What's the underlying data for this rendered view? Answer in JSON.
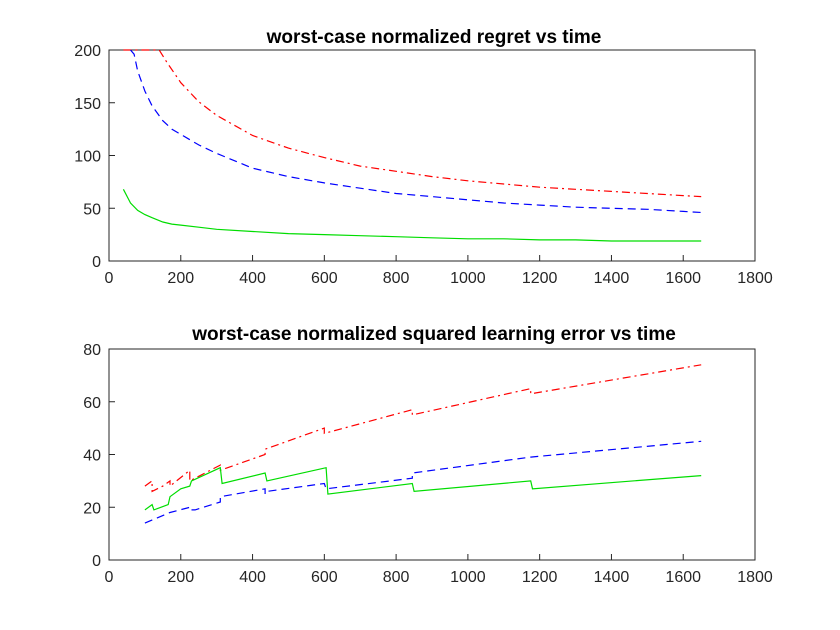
{
  "chart_data": [
    {
      "type": "line",
      "title": "worst-case normalized regret vs time",
      "xlabel": "",
      "ylabel": "",
      "xlim": [
        0,
        1800
      ],
      "ylim": [
        0,
        200
      ],
      "xticks": [
        "0",
        "200",
        "400",
        "600",
        "800",
        "1000",
        "1200",
        "1400",
        "1600",
        "1800"
      ],
      "yticks": [
        "0",
        "50",
        "100",
        "150",
        "200"
      ],
      "grid": false,
      "series": [
        {
          "color": "#ff0000",
          "linestyle": "dashdot",
          "x": [
            40,
            100,
            140,
            160,
            200,
            250,
            300,
            400,
            500,
            600,
            700,
            800,
            900,
            1000,
            1100,
            1200,
            1300,
            1400,
            1500,
            1600,
            1650
          ],
          "y": [
            200,
            200,
            200,
            189,
            169,
            151,
            138,
            119,
            107,
            98,
            90,
            85,
            80,
            76,
            73,
            70,
            68,
            66,
            64,
            62,
            61
          ]
        },
        {
          "color": "#0000ff",
          "linestyle": "dashed",
          "x": [
            60,
            70,
            80,
            100,
            120,
            150,
            175,
            200,
            250,
            300,
            400,
            500,
            600,
            700,
            800,
            900,
            1000,
            1100,
            1200,
            1300,
            1400,
            1500,
            1600,
            1650
          ],
          "y": [
            200,
            196,
            180,
            161,
            147,
            133,
            125,
            120,
            110,
            102,
            88,
            80,
            74,
            69,
            64,
            61,
            58,
            55,
            53,
            51,
            50,
            49,
            47,
            46
          ]
        },
        {
          "color": "#00dd00",
          "linestyle": "solid",
          "x": [
            40,
            60,
            80,
            100,
            120,
            150,
            175,
            200,
            250,
            300,
            400,
            500,
            600,
            700,
            800,
            900,
            1000,
            1100,
            1200,
            1300,
            1400,
            1500,
            1600,
            1650
          ],
          "y": [
            68,
            55,
            48,
            44,
            41,
            37,
            35,
            34,
            32,
            30,
            28,
            26,
            25,
            24,
            23,
            22,
            21,
            21,
            20,
            20,
            19,
            19,
            19,
            19
          ]
        }
      ]
    },
    {
      "type": "line",
      "title": "worst-case normalized squared learning error vs time",
      "xlabel": "",
      "ylabel": "",
      "xlim": [
        0,
        1800
      ],
      "ylim": [
        0,
        80
      ],
      "xticks": [
        "0",
        "200",
        "400",
        "600",
        "800",
        "1000",
        "1200",
        "1400",
        "1600",
        "1800"
      ],
      "yticks": [
        "0",
        "20",
        "40",
        "60",
        "80"
      ],
      "grid": false,
      "series": [
        {
          "color": "#ff0000",
          "linestyle": "dashdot",
          "x": [
            100,
            120,
            120,
            150,
            170,
            170,
            225,
            225,
            310,
            310,
            435,
            435,
            600,
            600,
            845,
            845,
            1175,
            1175,
            1650
          ],
          "y": [
            28,
            30,
            26,
            28,
            30,
            28,
            34,
            30,
            36,
            34,
            40,
            42,
            50,
            48,
            57,
            55,
            65,
            63,
            74
          ]
        },
        {
          "color": "#0000ff",
          "linestyle": "dashed",
          "x": [
            100,
            170,
            225,
            225,
            240,
            310,
            310,
            435,
            435,
            440,
            600,
            605,
            845,
            845,
            1175,
            1175,
            1650
          ],
          "y": [
            14,
            18,
            20,
            19,
            19,
            22,
            24,
            27,
            25,
            26,
            29,
            27,
            31,
            33,
            39,
            39,
            45
          ]
        },
        {
          "color": "#00dd00",
          "linestyle": "solid",
          "x": [
            100,
            120,
            125,
            165,
            170,
            200,
            225,
            230,
            310,
            315,
            435,
            440,
            605,
            610,
            845,
            850,
            1175,
            1180,
            1650
          ],
          "y": [
            19,
            21,
            19,
            21,
            24,
            27,
            28,
            30,
            35,
            29,
            33,
            30,
            35,
            25,
            29,
            26,
            30,
            27,
            32
          ]
        }
      ]
    }
  ]
}
